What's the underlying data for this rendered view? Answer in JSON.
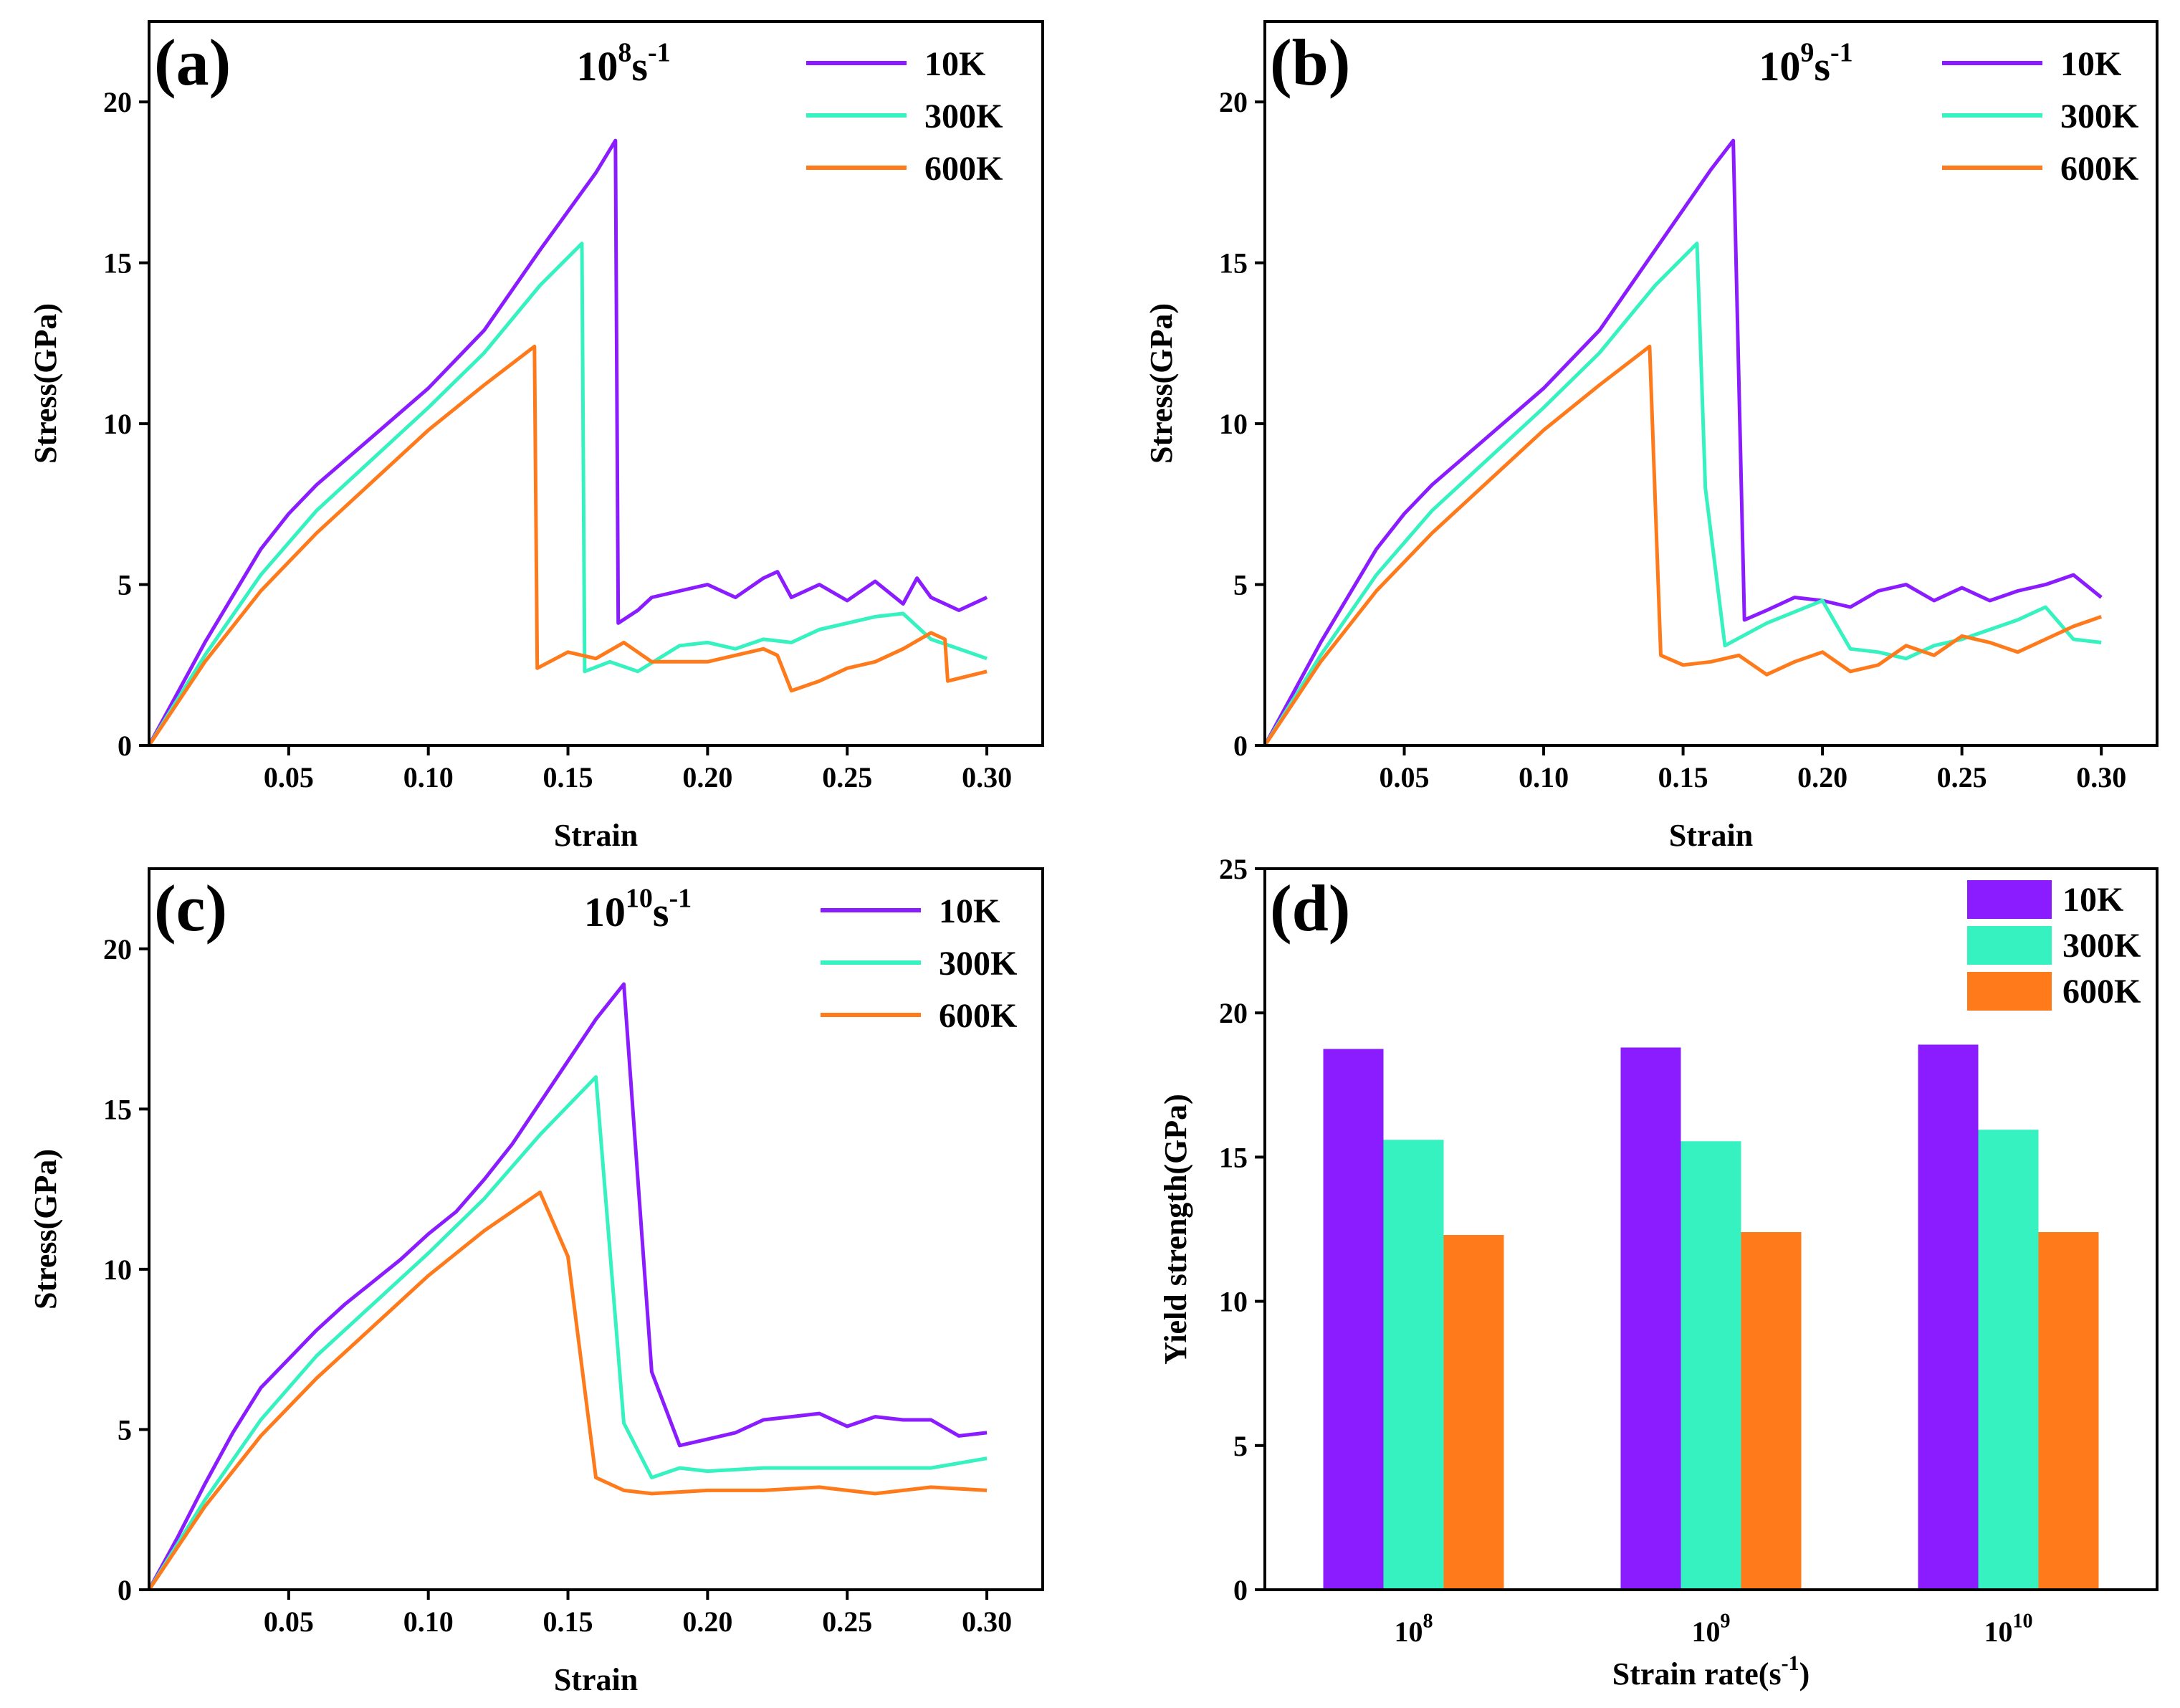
{
  "colors": {
    "10K": "#8a1cff",
    "300K": "#35f2c0",
    "600K": "#ff7a1a",
    "axis": "#000000"
  },
  "chart_data": [
    {
      "panel": "a",
      "type": "line",
      "label": "(a)",
      "title_base": "10",
      "title_exp": "8",
      "title_unit": "s",
      "title_unit_exp": "-1",
      "xlabel": "Strain",
      "ylabel": "Stress(GPa)",
      "xlim": [
        0,
        0.32
      ],
      "ylim": [
        0,
        22.5
      ],
      "xticks": [
        0.05,
        0.1,
        0.15,
        0.2,
        0.25,
        0.3
      ],
      "xtick_labels": [
        "0.05",
        "0.10",
        "0.15",
        "0.20",
        "0.25",
        "0.30"
      ],
      "yticks": [
        0,
        5,
        10,
        15,
        20
      ],
      "ytick_labels": [
        "0",
        "5",
        "10",
        "15",
        "20"
      ],
      "legend_labels": [
        "10K",
        "300K",
        "600K"
      ],
      "series": [
        {
          "name": "10K",
          "x": [
            0,
            0.02,
            0.04,
            0.05,
            0.06,
            0.08,
            0.1,
            0.12,
            0.14,
            0.16,
            0.167,
            0.168,
            0.175,
            0.18,
            0.19,
            0.2,
            0.21,
            0.22,
            0.225,
            0.23,
            0.24,
            0.25,
            0.26,
            0.27,
            0.275,
            0.28,
            0.29,
            0.3
          ],
          "y": [
            0,
            3.2,
            6.1,
            7.2,
            8.1,
            9.6,
            11.1,
            12.9,
            15.4,
            17.8,
            18.8,
            3.8,
            4.2,
            4.6,
            4.8,
            5.0,
            4.6,
            5.2,
            5.4,
            4.6,
            5.0,
            4.5,
            5.1,
            4.4,
            5.2,
            4.6,
            4.2,
            4.6
          ]
        },
        {
          "name": "300K",
          "x": [
            0,
            0.02,
            0.04,
            0.06,
            0.08,
            0.1,
            0.12,
            0.14,
            0.155,
            0.156,
            0.165,
            0.175,
            0.19,
            0.2,
            0.21,
            0.22,
            0.23,
            0.24,
            0.25,
            0.26,
            0.27,
            0.28,
            0.29,
            0.3
          ],
          "y": [
            0,
            2.8,
            5.3,
            7.3,
            8.9,
            10.5,
            12.2,
            14.3,
            15.6,
            2.3,
            2.6,
            2.3,
            3.1,
            3.2,
            3.0,
            3.3,
            3.2,
            3.6,
            3.8,
            4.0,
            4.1,
            3.3,
            3.0,
            2.7
          ]
        },
        {
          "name": "600K",
          "x": [
            0,
            0.02,
            0.04,
            0.06,
            0.08,
            0.1,
            0.12,
            0.138,
            0.139,
            0.15,
            0.16,
            0.17,
            0.18,
            0.2,
            0.22,
            0.225,
            0.23,
            0.24,
            0.25,
            0.26,
            0.27,
            0.28,
            0.285,
            0.286,
            0.3
          ],
          "y": [
            0,
            2.6,
            4.8,
            6.6,
            8.2,
            9.8,
            11.2,
            12.4,
            2.4,
            2.9,
            2.7,
            3.2,
            2.6,
            2.6,
            3.0,
            2.8,
            1.7,
            2.0,
            2.4,
            2.6,
            3.0,
            3.5,
            3.3,
            2.0,
            2.3
          ]
        }
      ]
    },
    {
      "panel": "b",
      "type": "line",
      "label": "(b)",
      "title_base": "10",
      "title_exp": "9",
      "title_unit": "s",
      "title_unit_exp": "-1",
      "xlabel": "Strain",
      "ylabel": "Stress(GPa)",
      "xlim": [
        0,
        0.32
      ],
      "ylim": [
        0,
        22.5
      ],
      "xticks": [
        0.05,
        0.1,
        0.15,
        0.2,
        0.25,
        0.3
      ],
      "xtick_labels": [
        "0.05",
        "0.10",
        "0.15",
        "0.20",
        "0.25",
        "0.30"
      ],
      "yticks": [
        0,
        5,
        10,
        15,
        20
      ],
      "ytick_labels": [
        "0",
        "5",
        "10",
        "15",
        "20"
      ],
      "legend_labels": [
        "10K",
        "300K",
        "600K"
      ],
      "series": [
        {
          "name": "10K",
          "x": [
            0,
            0.02,
            0.04,
            0.05,
            0.06,
            0.08,
            0.1,
            0.12,
            0.14,
            0.16,
            0.168,
            0.172,
            0.18,
            0.19,
            0.2,
            0.21,
            0.22,
            0.23,
            0.24,
            0.25,
            0.26,
            0.27,
            0.28,
            0.29,
            0.3
          ],
          "y": [
            0,
            3.2,
            6.1,
            7.2,
            8.1,
            9.6,
            11.1,
            12.9,
            15.4,
            17.9,
            18.8,
            3.9,
            4.2,
            4.6,
            4.5,
            4.3,
            4.8,
            5.0,
            4.5,
            4.9,
            4.5,
            4.8,
            5.0,
            5.3,
            4.6
          ]
        },
        {
          "name": "300K",
          "x": [
            0,
            0.02,
            0.04,
            0.06,
            0.08,
            0.1,
            0.12,
            0.14,
            0.155,
            0.158,
            0.165,
            0.18,
            0.2,
            0.21,
            0.22,
            0.23,
            0.24,
            0.25,
            0.26,
            0.27,
            0.28,
            0.29,
            0.3
          ],
          "y": [
            0,
            2.8,
            5.3,
            7.3,
            8.9,
            10.5,
            12.2,
            14.3,
            15.6,
            8.0,
            3.1,
            3.8,
            4.5,
            3.0,
            2.9,
            2.7,
            3.1,
            3.3,
            3.6,
            3.9,
            4.3,
            3.3,
            3.2
          ]
        },
        {
          "name": "600K",
          "x": [
            0,
            0.02,
            0.04,
            0.06,
            0.08,
            0.1,
            0.12,
            0.138,
            0.142,
            0.15,
            0.16,
            0.17,
            0.18,
            0.19,
            0.2,
            0.21,
            0.22,
            0.23,
            0.24,
            0.25,
            0.26,
            0.27,
            0.28,
            0.29,
            0.3
          ],
          "y": [
            0,
            2.6,
            4.8,
            6.6,
            8.2,
            9.8,
            11.2,
            12.4,
            2.8,
            2.5,
            2.6,
            2.8,
            2.2,
            2.6,
            2.9,
            2.3,
            2.5,
            3.1,
            2.8,
            3.4,
            3.2,
            2.9,
            3.3,
            3.7,
            4.0
          ]
        }
      ]
    },
    {
      "panel": "c",
      "type": "line",
      "label": "(c)",
      "title_base": "10",
      "title_exp": "10",
      "title_unit": "s",
      "title_unit_exp": "-1",
      "xlabel": "Strain",
      "ylabel": "Stress(GPa)",
      "xlim": [
        0,
        0.32
      ],
      "ylim": [
        0,
        22.5
      ],
      "xticks": [
        0.05,
        0.1,
        0.15,
        0.2,
        0.25,
        0.3
      ],
      "xtick_labels": [
        "0.05",
        "0.10",
        "0.15",
        "0.20",
        "0.25",
        "0.30"
      ],
      "yticks": [
        0,
        5,
        10,
        15,
        20
      ],
      "ytick_labels": [
        "0",
        "5",
        "10",
        "15",
        "20"
      ],
      "legend_labels": [
        "10K",
        "300K",
        "600K"
      ],
      "series": [
        {
          "name": "10K",
          "x": [
            0,
            0.01,
            0.02,
            0.03,
            0.04,
            0.05,
            0.06,
            0.07,
            0.08,
            0.09,
            0.1,
            0.11,
            0.12,
            0.13,
            0.14,
            0.15,
            0.16,
            0.17,
            0.18,
            0.19,
            0.2,
            0.21,
            0.22,
            0.23,
            0.24,
            0.25,
            0.26,
            0.27,
            0.28,
            0.29,
            0.3
          ],
          "y": [
            0,
            1.6,
            3.3,
            4.9,
            6.3,
            7.2,
            8.1,
            8.9,
            9.6,
            10.3,
            11.1,
            11.8,
            12.8,
            13.9,
            15.2,
            16.5,
            17.8,
            18.9,
            6.8,
            4.5,
            4.7,
            4.9,
            5.3,
            5.4,
            5.5,
            5.1,
            5.4,
            5.3,
            5.3,
            4.8,
            4.9
          ]
        },
        {
          "name": "300K",
          "x": [
            0,
            0.02,
            0.04,
            0.06,
            0.08,
            0.1,
            0.12,
            0.14,
            0.16,
            0.17,
            0.18,
            0.19,
            0.2,
            0.22,
            0.24,
            0.26,
            0.28,
            0.3
          ],
          "y": [
            0,
            2.8,
            5.3,
            7.3,
            8.9,
            10.5,
            12.2,
            14.2,
            16.0,
            5.2,
            3.5,
            3.8,
            3.7,
            3.8,
            3.8,
            3.8,
            3.8,
            4.1
          ]
        },
        {
          "name": "600K",
          "x": [
            0,
            0.02,
            0.04,
            0.06,
            0.08,
            0.1,
            0.12,
            0.14,
            0.15,
            0.16,
            0.17,
            0.18,
            0.2,
            0.22,
            0.24,
            0.26,
            0.28,
            0.3
          ],
          "y": [
            0,
            2.6,
            4.8,
            6.6,
            8.2,
            9.8,
            11.2,
            12.4,
            10.4,
            3.5,
            3.1,
            3.0,
            3.1,
            3.1,
            3.2,
            3.0,
            3.2,
            3.1
          ]
        }
      ]
    },
    {
      "panel": "d",
      "type": "bar",
      "label": "(d)",
      "xlabel": "Strain rate(s",
      "xlabel_exp": "-1",
      "xlabel_close": ")",
      "ylabel": "Yield strength(GPa)",
      "ylim": [
        0,
        25
      ],
      "yticks": [
        0,
        5,
        10,
        15,
        20,
        25
      ],
      "ytick_labels": [
        "0",
        "5",
        "10",
        "15",
        "20",
        "25"
      ],
      "categories": [
        {
          "base": "10",
          "exp": "8"
        },
        {
          "base": "10",
          "exp": "9"
        },
        {
          "base": "10",
          "exp": "10"
        }
      ],
      "series": [
        {
          "name": "10K",
          "values": [
            18.75,
            18.8,
            18.9
          ]
        },
        {
          "name": "300K",
          "values": [
            15.6,
            15.55,
            15.95
          ]
        },
        {
          "name": "600K",
          "values": [
            12.3,
            12.4,
            12.4
          ]
        }
      ],
      "legend_labels": [
        "10K",
        "300K",
        "600K"
      ]
    }
  ]
}
